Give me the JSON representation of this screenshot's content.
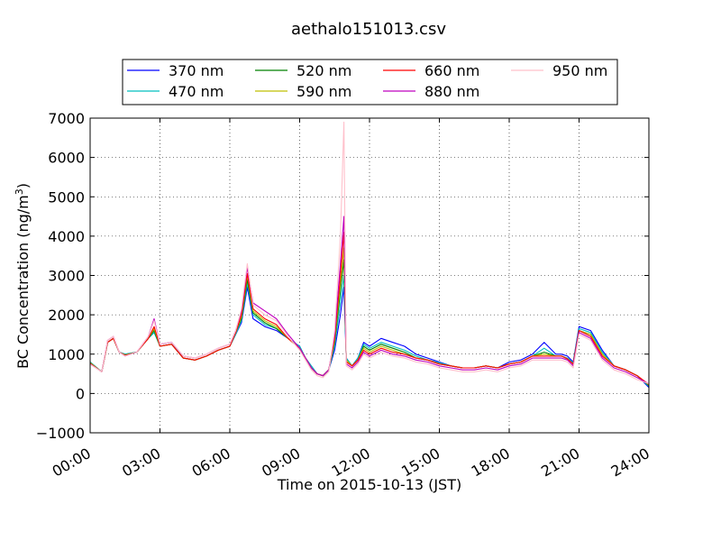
{
  "chart_data": {
    "type": "line",
    "title": "aethalo151013.csv",
    "xlabel": "Time on 2015-10-13 (JST)",
    "ylabel_main": "BC Concentration (ng/m",
    "ylabel_sup": "3",
    "ylabel_close": ")",
    "xlim": [
      0,
      24
    ],
    "ylim": [
      -1000,
      7000
    ],
    "grid": true,
    "legend_position": "top",
    "x_ticks": [
      {
        "value": 0,
        "label": "00:00"
      },
      {
        "value": 3,
        "label": "03:00"
      },
      {
        "value": 6,
        "label": "06:00"
      },
      {
        "value": 9,
        "label": "09:00"
      },
      {
        "value": 12,
        "label": "12:00"
      },
      {
        "value": 15,
        "label": "15:00"
      },
      {
        "value": 18,
        "label": "18:00"
      },
      {
        "value": 21,
        "label": "21:00"
      },
      {
        "value": 24,
        "label": "24:00"
      }
    ],
    "y_ticks": [
      {
        "value": -1000,
        "label": "−1000"
      },
      {
        "value": 0,
        "label": "0"
      },
      {
        "value": 1000,
        "label": "1000"
      },
      {
        "value": 2000,
        "label": "2000"
      },
      {
        "value": 3000,
        "label": "3000"
      },
      {
        "value": 4000,
        "label": "4000"
      },
      {
        "value": 5000,
        "label": "5000"
      },
      {
        "value": 6000,
        "label": "6000"
      },
      {
        "value": 7000,
        "label": "7000"
      }
    ],
    "x": [
      0,
      0.5,
      0.75,
      1,
      1.25,
      1.5,
      2,
      2.5,
      2.75,
      3,
      3.5,
      4,
      4.5,
      5,
      5.5,
      6,
      6.25,
      6.5,
      6.75,
      7,
      7.5,
      8,
      8.5,
      9,
      9.25,
      9.5,
      9.75,
      10,
      10.25,
      10.5,
      10.75,
      10.9,
      11,
      11.25,
      11.5,
      11.75,
      12,
      12.5,
      13,
      13.5,
      14,
      14.5,
      15,
      15.5,
      16,
      16.5,
      17,
      17.5,
      18,
      18.5,
      19,
      19.5,
      20,
      20.25,
      20.5,
      20.75,
      21,
      21.5,
      22,
      22.5,
      23,
      23.5,
      24
    ],
    "series": [
      {
        "name": "370 nm",
        "color": "#0000ff",
        "values": [
          800,
          550,
          1300,
          1400,
          1050,
          1000,
          1050,
          1400,
          1550,
          1250,
          1300,
          900,
          850,
          950,
          1100,
          1200,
          1500,
          1800,
          2700,
          1900,
          1700,
          1600,
          1400,
          1200,
          900,
          700,
          500,
          450,
          600,
          1100,
          2000,
          2700,
          900,
          700,
          900,
          1300,
          1200,
          1400,
          1300,
          1200,
          1000,
          900,
          800,
          700,
          650,
          650,
          700,
          650,
          800,
          850,
          1000,
          1300,
          1000,
          1000,
          950,
          800,
          1700,
          1600,
          1100,
          700,
          600,
          450,
          150
        ]
      },
      {
        "name": "470 nm",
        "color": "#00bfbf",
        "values": [
          800,
          550,
          1300,
          1400,
          1050,
          1000,
          1050,
          1400,
          1550,
          1200,
          1250,
          900,
          850,
          950,
          1100,
          1200,
          1500,
          1850,
          2800,
          2000,
          1750,
          1650,
          1400,
          1200,
          900,
          700,
          500,
          450,
          600,
          1200,
          2300,
          3000,
          900,
          700,
          900,
          1250,
          1150,
          1300,
          1200,
          1100,
          950,
          850,
          780,
          700,
          650,
          650,
          700,
          650,
          750,
          800,
          950,
          1150,
          950,
          950,
          900,
          780,
          1650,
          1550,
          1050,
          700,
          600,
          450,
          180
        ]
      },
      {
        "name": "520 nm",
        "color": "#008000",
        "values": [
          780,
          550,
          1300,
          1400,
          1050,
          980,
          1050,
          1400,
          1600,
          1200,
          1250,
          900,
          850,
          950,
          1100,
          1200,
          1550,
          1900,
          2900,
          2050,
          1800,
          1650,
          1400,
          1150,
          900,
          650,
          500,
          450,
          600,
          1300,
          2600,
          3400,
          850,
          700,
          850,
          1200,
          1100,
          1250,
          1150,
          1050,
          900,
          850,
          750,
          700,
          650,
          650,
          700,
          650,
          750,
          800,
          950,
          1050,
          950,
          950,
          880,
          750,
          1600,
          1500,
          1000,
          700,
          600,
          450,
          200
        ]
      },
      {
        "name": "590 nm",
        "color": "#bfbf00",
        "values": [
          780,
          550,
          1300,
          1400,
          1050,
          980,
          1050,
          1400,
          1650,
          1200,
          1250,
          900,
          850,
          950,
          1100,
          1200,
          1550,
          1950,
          3000,
          2100,
          1850,
          1700,
          1400,
          1150,
          900,
          650,
          500,
          450,
          600,
          1350,
          2800,
          3700,
          850,
          700,
          850,
          1150,
          1050,
          1200,
          1100,
          1000,
          900,
          850,
          750,
          700,
          650,
          650,
          700,
          650,
          750,
          800,
          950,
          1000,
          950,
          950,
          880,
          750,
          1600,
          1500,
          1000,
          700,
          600,
          450,
          220
        ]
      },
      {
        "name": "660 nm",
        "color": "#ff0000",
        "values": [
          760,
          550,
          1300,
          1400,
          1050,
          970,
          1050,
          1400,
          1700,
          1200,
          1250,
          900,
          850,
          950,
          1100,
          1200,
          1550,
          2000,
          3050,
          2150,
          1900,
          1750,
          1400,
          1150,
          900,
          650,
          500,
          450,
          600,
          1400,
          3000,
          4100,
          800,
          700,
          850,
          1100,
          1000,
          1150,
          1050,
          1000,
          900,
          850,
          750,
          700,
          650,
          650,
          700,
          650,
          750,
          800,
          950,
          950,
          950,
          950,
          880,
          750,
          1600,
          1450,
          950,
          700,
          600,
          450,
          230
        ]
      },
      {
        "name": "880 nm",
        "color": "#bf00bf",
        "values": [
          750,
          550,
          1350,
          1450,
          1050,
          950,
          1050,
          1450,
          1900,
          1250,
          1300,
          950,
          900,
          1000,
          1150,
          1250,
          1600,
          2100,
          3200,
          2300,
          2100,
          1900,
          1500,
          1150,
          900,
          650,
          500,
          450,
          600,
          1500,
          3300,
          4500,
          750,
          650,
          800,
          1050,
          950,
          1100,
          1000,
          950,
          850,
          800,
          700,
          650,
          600,
          600,
          650,
          600,
          700,
          750,
          900,
          900,
          900,
          900,
          850,
          700,
          1550,
          1400,
          900,
          650,
          550,
          400,
          240
        ]
      },
      {
        "name": "950 nm",
        "color": "#ffc0cb",
        "values": [
          740,
          550,
          1350,
          1450,
          1050,
          950,
          1050,
          1450,
          1850,
          1250,
          1300,
          950,
          900,
          1000,
          1150,
          1250,
          1600,
          2150,
          3300,
          2250,
          2000,
          1850,
          1450,
          1100,
          850,
          600,
          450,
          400,
          550,
          1600,
          4000,
          6900,
          700,
          600,
          750,
          1000,
          900,
          1050,
          950,
          900,
          800,
          750,
          650,
          600,
          550,
          550,
          600,
          550,
          650,
          700,
          850,
          850,
          850,
          850,
          800,
          650,
          1500,
          1350,
          850,
          600,
          500,
          350,
          250
        ]
      }
    ]
  }
}
